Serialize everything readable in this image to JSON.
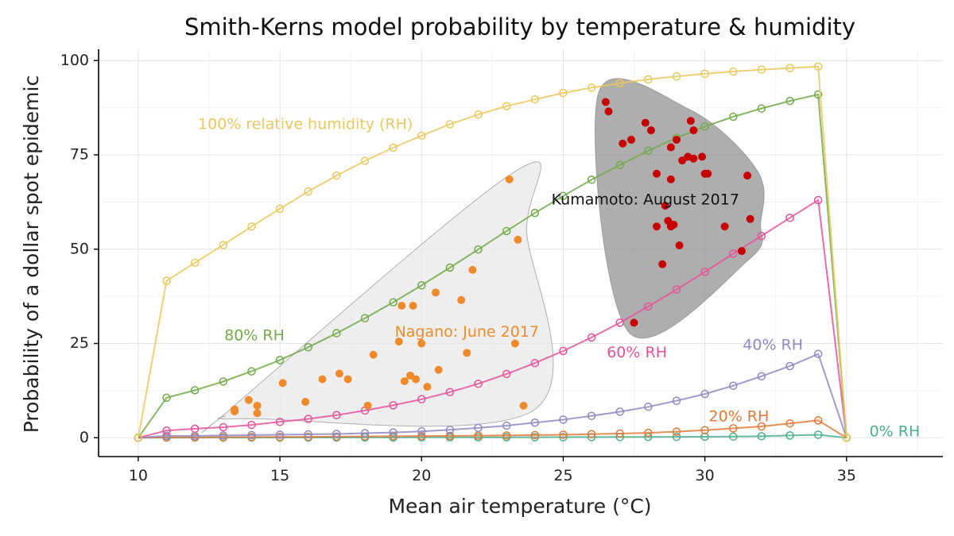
{
  "chart_data": {
    "type": "scatter",
    "title": "Smith-Kerns model probability by temperature & humidity",
    "xlabel": "Mean air temperature (°C)",
    "ylabel": "Probability of a dollar spot epidemic",
    "xlim": [
      8.6,
      38.4
    ],
    "ylim": [
      -5,
      103
    ],
    "x_ticks": [
      10,
      15,
      20,
      25,
      30,
      35
    ],
    "y_ticks": [
      0,
      25,
      50,
      75,
      100
    ],
    "grid": true,
    "model_x": [
      10,
      11,
      12,
      13,
      14,
      15,
      16,
      17,
      18,
      19,
      20,
      21,
      22,
      23,
      24,
      25,
      26,
      27,
      28,
      29,
      30,
      31,
      32,
      33,
      34,
      35
    ],
    "series": [
      {
        "label": "0% RH",
        "color": "#4caf8e",
        "label_x": 36.7,
        "label_y": 1.5,
        "values": [
          0,
          0.02,
          0.03,
          0.03,
          0.04,
          0.05,
          0.05,
          0.06,
          0.07,
          0.08,
          0.09,
          0.1,
          0.11,
          0.12,
          0.14,
          0.15,
          0.17,
          0.19,
          0.21,
          0.24,
          0.27,
          0.3,
          0.4,
          0.6,
          0.8,
          0
        ]
      },
      {
        "label": "20% RH",
        "color": "#e07a3a",
        "label_x": 31.2,
        "label_y": 5.5,
        "values": [
          0,
          0.1,
          0.1,
          0.15,
          0.18,
          0.2,
          0.25,
          0.3,
          0.35,
          0.4,
          0.45,
          0.5,
          0.55,
          0.6,
          0.7,
          0.8,
          0.95,
          1.1,
          1.3,
          1.6,
          2.0,
          2.5,
          3.0,
          3.8,
          4.6,
          0
        ]
      },
      {
        "label": "40% RH",
        "color": "#8f89c2",
        "label_x": 32.4,
        "label_y": 24.5,
        "values": [
          0,
          0.5,
          0.5,
          0.6,
          0.7,
          0.8,
          0.9,
          1.0,
          1.2,
          1.4,
          1.7,
          2.1,
          2.6,
          3.2,
          4.0,
          4.8,
          5.8,
          6.9,
          8.2,
          9.8,
          11.6,
          13.8,
          16.3,
          19.0,
          22.2,
          0
        ]
      },
      {
        "label": "60% RH",
        "color": "#e5529b",
        "label_x": 27.6,
        "label_y": 22.5,
        "values": [
          0,
          1.9,
          2.4,
          2.8,
          3.4,
          4.2,
          5.0,
          6.0,
          7.2,
          8.6,
          10.2,
          12.1,
          14.3,
          16.9,
          19.8,
          23.0,
          26.6,
          30.5,
          34.8,
          39.3,
          44.0,
          48.8,
          53.5,
          58.3,
          63.0,
          0
        ]
      },
      {
        "label": "80% RH",
        "color": "#72a94a",
        "label_x": 14.1,
        "label_y": 27,
        "values": [
          0,
          10.6,
          12.6,
          14.9,
          17.6,
          20.6,
          24.0,
          27.7,
          31.7,
          35.9,
          40.4,
          45.1,
          49.9,
          54.8,
          59.6,
          64.1,
          68.4,
          72.3,
          76.1,
          79.5,
          82.5,
          85.1,
          87.3,
          89.3,
          91.0,
          0
        ]
      },
      {
        "label": "100% relative humidity (RH)",
        "color": "#ebc85e",
        "label_x": 15.9,
        "label_y": 83,
        "values": [
          0,
          41.6,
          46.4,
          51.1,
          56.0,
          60.7,
          65.3,
          69.5,
          73.4,
          76.9,
          80.1,
          83.1,
          85.7,
          87.9,
          89.7,
          91.4,
          92.8,
          94.0,
          95.0,
          95.8,
          96.5,
          97.1,
          97.6,
          98.0,
          98.4,
          0
        ]
      }
    ],
    "observations": [
      {
        "label": "Nagano: June 2017",
        "color": "#ef8a2a",
        "label_x": 21.6,
        "label_y": 28,
        "hull_fill": "#e8e8e8",
        "points": [
          [
            13.4,
            7
          ],
          [
            13.4,
            7.5
          ],
          [
            13.9,
            10
          ],
          [
            14.2,
            8.5
          ],
          [
            14.2,
            6.5
          ],
          [
            15.1,
            14.5
          ],
          [
            15.9,
            9.5
          ],
          [
            16.5,
            15.5
          ],
          [
            17.1,
            17
          ],
          [
            17.4,
            15.5
          ],
          [
            18.1,
            8.5
          ],
          [
            18.3,
            22
          ],
          [
            19.2,
            25.5
          ],
          [
            19.3,
            35
          ],
          [
            19.4,
            15
          ],
          [
            19.6,
            16.5
          ],
          [
            19.7,
            35
          ],
          [
            19.8,
            15.5
          ],
          [
            20.0,
            25
          ],
          [
            20.2,
            13.5
          ],
          [
            20.5,
            38.5
          ],
          [
            20.6,
            18
          ],
          [
            21.4,
            36.5
          ],
          [
            21.6,
            22.5
          ],
          [
            21.8,
            44.5
          ],
          [
            23.1,
            68.5
          ],
          [
            23.3,
            25
          ],
          [
            23.4,
            52.5
          ],
          [
            23.6,
            8.5
          ]
        ]
      },
      {
        "label": "Kumamoto: August 2017",
        "color": "#c70000",
        "label_x": 27.9,
        "label_y": 63,
        "hull_fill": "#8f8f8f",
        "points": [
          [
            26.5,
            89
          ],
          [
            26.6,
            86.5
          ],
          [
            27.1,
            78
          ],
          [
            27.4,
            79
          ],
          [
            27.5,
            30.5
          ],
          [
            27.9,
            83.5
          ],
          [
            28.1,
            81.5
          ],
          [
            28.3,
            70
          ],
          [
            28.3,
            56
          ],
          [
            28.5,
            46
          ],
          [
            28.6,
            61.5
          ],
          [
            28.7,
            57.5
          ],
          [
            28.8,
            56
          ],
          [
            28.8,
            68.5
          ],
          [
            28.8,
            77
          ],
          [
            28.9,
            56.5
          ],
          [
            29.0,
            79
          ],
          [
            29.1,
            51
          ],
          [
            29.2,
            73.5
          ],
          [
            29.4,
            74.5
          ],
          [
            29.5,
            84
          ],
          [
            29.6,
            74
          ],
          [
            29.6,
            81.5
          ],
          [
            29.9,
            74.5
          ],
          [
            30.0,
            70
          ],
          [
            30.1,
            70
          ],
          [
            30.7,
            56
          ],
          [
            31.3,
            49.5
          ],
          [
            31.5,
            69.5
          ],
          [
            31.6,
            58
          ]
        ]
      }
    ]
  }
}
